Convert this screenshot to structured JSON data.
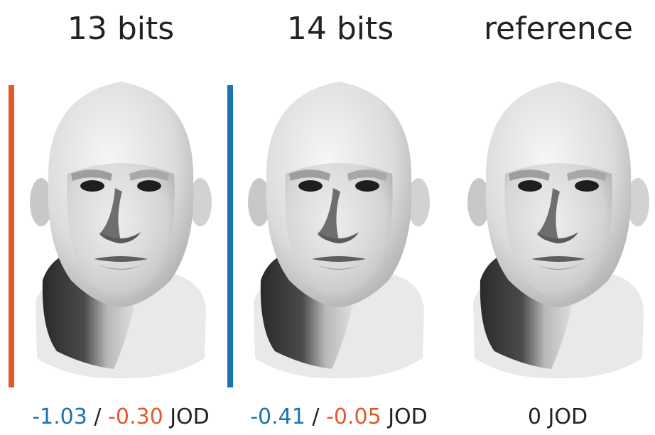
{
  "panels": [
    {
      "title": "13 bits",
      "bar_color": "#e05a2b",
      "score_a": "-1.03",
      "separator": " / ",
      "score_b": "-0.30",
      "unit": " JOD"
    },
    {
      "title": "14 bits",
      "bar_color": "#1a73b3",
      "score_a": "-0.41",
      "separator": " / ",
      "score_b": "-0.05",
      "unit": " JOD"
    },
    {
      "title": "reference",
      "score": "0",
      "unit": " JOD"
    }
  ],
  "colors": {
    "score_a": "#1a73b3",
    "score_b": "#e05a2b",
    "text": "#222222"
  }
}
